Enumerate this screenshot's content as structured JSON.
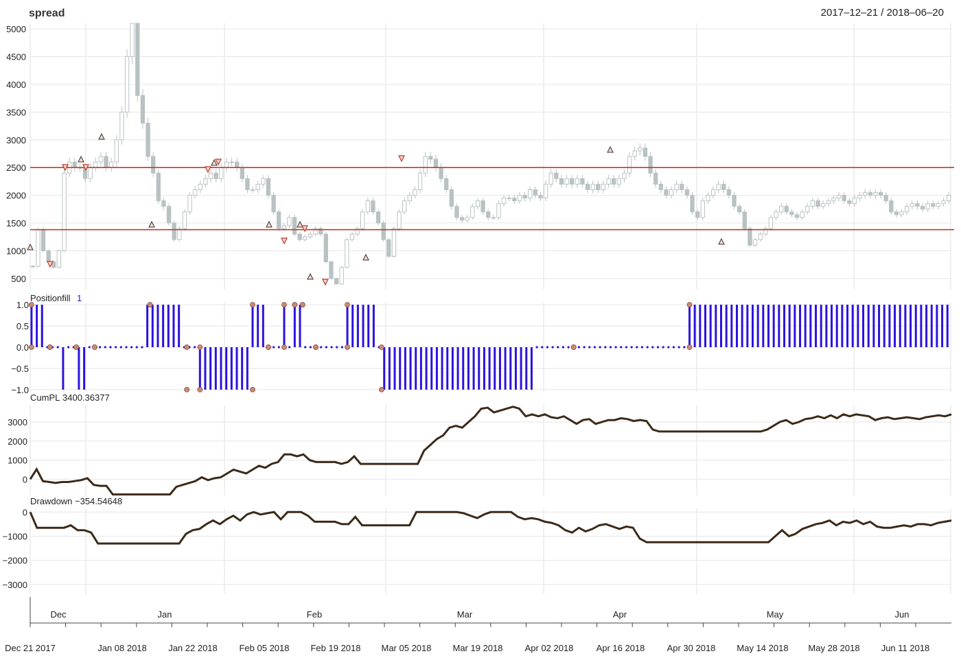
{
  "title": "spread",
  "date_range": "2017–12–21 / 2018–06–20",
  "chart_data": [
    {
      "type": "candlestick",
      "name": "spread",
      "ylim": [
        300,
        5100
      ],
      "yticks": [
        5000,
        4500,
        4000,
        3500,
        3000,
        2500,
        2000,
        1500,
        1000,
        500
      ],
      "hlines": [
        2500,
        1380
      ],
      "close": [
        720,
        1380,
        1000,
        800,
        700,
        1000,
        2400,
        2600,
        2500,
        2500,
        2300,
        2500,
        2600,
        2700,
        2500,
        2600,
        3000,
        3500,
        4500,
        5100,
        3800,
        3300,
        2700,
        2400,
        1900,
        1800,
        1500,
        1200,
        1400,
        1700,
        2000,
        2100,
        2200,
        2300,
        2400,
        2300,
        2500,
        2600,
        2600,
        2500,
        2300,
        2100,
        2100,
        2200,
        2300,
        2000,
        1700,
        1400,
        1450,
        1600,
        1300,
        1200,
        1250,
        1300,
        1400,
        1300,
        800,
        500,
        400,
        700,
        1200,
        1300,
        1400,
        1700,
        1900,
        1700,
        1500,
        1200,
        900,
        1400,
        1700,
        1900,
        2000,
        2100,
        2400,
        2700,
        2650,
        2500,
        2300,
        2100,
        1800,
        1600,
        1550,
        1600,
        1800,
        1900,
        1700,
        1600,
        1600,
        1850,
        1950,
        1950,
        1900,
        2000,
        1950,
        2100,
        2000,
        1950,
        2200,
        2400,
        2300,
        2200,
        2300,
        2200,
        2300,
        2200,
        2100,
        2200,
        2100,
        2200,
        2300,
        2200,
        2300,
        2400,
        2700,
        2800,
        2850,
        2700,
        2400,
        2200,
        2100,
        2000,
        2100,
        2200,
        2100,
        2000,
        1700,
        1600,
        1900,
        2000,
        2100,
        2200,
        2100,
        2000,
        1800,
        1700,
        1400,
        1100,
        1200,
        1300,
        1400,
        1600,
        1700,
        1800,
        1700,
        1650,
        1600,
        1700,
        1800,
        1900,
        1800,
        1850,
        1900,
        1950,
        2000,
        1900,
        1850,
        1950,
        2000,
        2050,
        2000,
        2050,
        2000,
        1900,
        1700,
        1650,
        1700,
        1800,
        1850,
        1800,
        1750,
        1850,
        1800,
        1850,
        1900,
        2000
      ]
    },
    {
      "type": "bar",
      "name": "Positionfill",
      "label": "Positionfill",
      "current": "1",
      "ylim": [
        -1.05,
        1.05
      ],
      "yticks": [
        "1.0",
        "0.5",
        "0.0",
        "−0.5",
        "−1.0"
      ],
      "segments": [
        {
          "from": 0,
          "to": 6,
          "value": 1
        },
        {
          "from": 12,
          "to": 13,
          "value": -1
        },
        {
          "from": 18,
          "to": 21,
          "value": -1
        },
        {
          "from": 43,
          "to": 57,
          "value": 1
        },
        {
          "from": 59,
          "to": 60,
          "value": -1
        },
        {
          "from": 64,
          "to": 84,
          "value": -1
        },
        {
          "from": 84,
          "to": 89,
          "value": 1
        },
        {
          "from": 96,
          "to": 97,
          "value": 1
        },
        {
          "from": 99,
          "to": 104,
          "value": 1
        },
        {
          "from": 120,
          "to": 132,
          "value": 1
        },
        {
          "from": 133,
          "to": 192,
          "value": -1
        },
        {
          "from": 250,
          "to": 349,
          "value": 1
        }
      ],
      "markers_x": [
        0,
        7,
        17,
        24,
        45,
        59,
        64,
        84,
        90,
        96,
        100,
        103,
        108,
        120,
        133,
        206,
        250
      ]
    },
    {
      "type": "line",
      "name": "CumPL",
      "label": "CumPL",
      "current": "3400.36377",
      "ylim": [
        -850,
        3900
      ],
      "yticks": [
        "3000",
        "2000",
        "1000",
        "0"
      ],
      "values": [
        0,
        520,
        -100,
        -150,
        -200,
        -150,
        -150,
        -100,
        -50,
        50,
        -300,
        -350,
        -350,
        -800,
        -800,
        -800,
        -800,
        -800,
        -800,
        -800,
        -800,
        -800,
        -800,
        -400,
        -300,
        -200,
        -100,
        100,
        -50,
        50,
        100,
        300,
        500,
        400,
        300,
        500,
        700,
        600,
        800,
        900,
        1300,
        1300,
        1200,
        1300,
        1000,
        900,
        900,
        900,
        900,
        800,
        900,
        1200,
        800,
        800,
        800,
        800,
        800,
        800,
        800,
        800,
        800,
        800,
        1500,
        1800,
        2100,
        2300,
        2700,
        2800,
        2700,
        3000,
        3300,
        3700,
        3750,
        3500,
        3600,
        3700,
        3800,
        3700,
        3300,
        3400,
        3300,
        3400,
        3250,
        3200,
        3300,
        3100,
        2900,
        3100,
        3150,
        2900,
        3000,
        3100,
        3100,
        3200,
        3150,
        3050,
        3100,
        3050,
        2600,
        2500,
        2500,
        2500,
        2500,
        2500,
        2500,
        2500,
        2500,
        2500,
        2500,
        2500,
        2500,
        2500,
        2500,
        2500,
        2500,
        2500,
        2600,
        2800,
        3000,
        3100,
        2900,
        3000,
        3150,
        3200,
        3300,
        3200,
        3350,
        3200,
        3400,
        3300,
        3400,
        3350,
        3300,
        3100,
        3200,
        3250,
        3150,
        3200,
        3250,
        3200,
        3150,
        3250,
        3300,
        3350,
        3300,
        3400
      ]
    },
    {
      "type": "line",
      "name": "Drawdown",
      "label": "Drawdown",
      "current": "−354.54648",
      "ylim": [
        -3400,
        150
      ],
      "yticks": [
        "0",
        "−1000",
        "−2000",
        "−3000"
      ],
      "values": [
        0,
        -650,
        -650,
        -650,
        -650,
        -650,
        -550,
        -750,
        -750,
        -850,
        -1300,
        -1300,
        -1300,
        -1300,
        -1300,
        -1300,
        -1300,
        -1300,
        -1300,
        -1300,
        -1300,
        -1300,
        -1300,
        -900,
        -750,
        -700,
        -500,
        -350,
        -500,
        -300,
        -150,
        -350,
        -100,
        0,
        -100,
        -50,
        0,
        -300,
        0,
        0,
        0,
        -150,
        -400,
        -400,
        -400,
        -400,
        -500,
        -500,
        -200,
        -550,
        -550,
        -550,
        -550,
        -550,
        -550,
        -550,
        -550,
        0,
        0,
        0,
        0,
        0,
        0,
        0,
        -50,
        -150,
        -250,
        -100,
        0,
        0,
        0,
        0,
        -200,
        -300,
        -250,
        -300,
        -400,
        -450,
        -550,
        -750,
        -850,
        -650,
        -800,
        -700,
        -550,
        -500,
        -600,
        -700,
        -600,
        -650,
        -1100,
        -1250,
        -1250,
        -1250,
        -1250,
        -1250,
        -1250,
        -1250,
        -1250,
        -1250,
        -1250,
        -1250,
        -1250,
        -1250,
        -1250,
        -1250,
        -1250,
        -1250,
        -1250,
        -1250,
        -1000,
        -750,
        -1000,
        -900,
        -700,
        -600,
        -500,
        -450,
        -350,
        -550,
        -400,
        -450,
        -350,
        -500,
        -400,
        -600,
        -650,
        -650,
        -600,
        -550,
        -600,
        -500,
        -500,
        -550,
        -450,
        -400,
        -350
      ]
    }
  ],
  "x_axis": {
    "months": [
      "Dec",
      "Jan",
      "Feb",
      "Mar",
      "Apr",
      "May",
      "Jun"
    ],
    "dates": [
      "Dec 21 2017",
      "Jan 08 2018",
      "Jan 22 2018",
      "Feb 05 2018",
      "Feb 19 2018",
      "Mar 05 2018",
      "Mar 19 2018",
      "Apr 02 2018",
      "Apr 16 2018",
      "Apr 30 2018",
      "May 14 2018",
      "May 28 2018",
      "Jun 11 2018"
    ]
  }
}
